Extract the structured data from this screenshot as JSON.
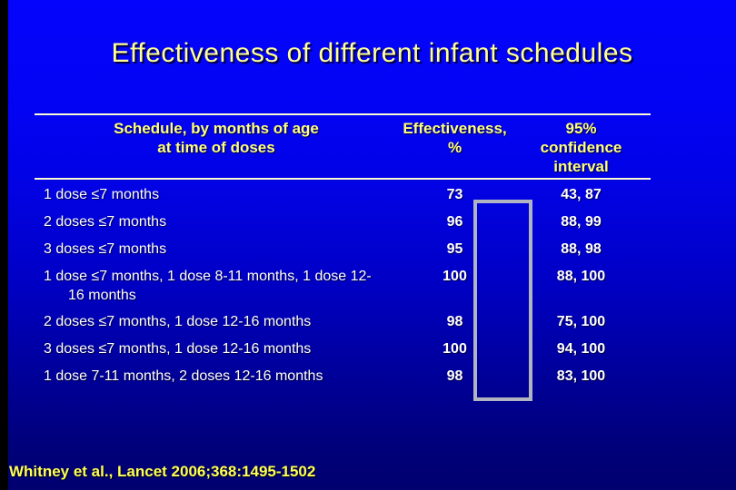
{
  "slide": {
    "title": "Effectiveness of different infant schedules"
  },
  "table": {
    "header": [
      {
        "lines": [
          "Schedule, by months of age",
          "at time of doses"
        ]
      },
      {
        "lines": [
          "Effectiveness,",
          "%"
        ]
      },
      {
        "lines": [
          "95%",
          "confidence",
          "interval"
        ]
      }
    ],
    "rows": [
      {
        "schedule": "1 dose ≤7 months",
        "effectiveness": "73",
        "ci": "43, 87"
      },
      {
        "schedule": "2 doses ≤7 months",
        "effectiveness": "96",
        "ci": "88, 99"
      },
      {
        "schedule": "3 doses ≤7 months",
        "effectiveness": "95",
        "ci": "88, 98"
      },
      {
        "schedule": "1 dose ≤7 months, 1 dose 8-11 months, 1 dose 12-16 months",
        "effectiveness": "100",
        "ci": "88, 100"
      },
      {
        "schedule": "2 doses ≤7 months, 1 dose 12-16 months",
        "effectiveness": "98",
        "ci": "75, 100"
      },
      {
        "schedule": "3 doses ≤7 months, 1 dose 12-16 months",
        "effectiveness": "100",
        "ci": "94, 100"
      },
      {
        "schedule": "1 dose 7-11 months, 2 doses 12-16 months",
        "effectiveness": "98",
        "ci": "83, 100"
      }
    ]
  },
  "citation": "Whitney et al., Lancet 2006;368:1495-1502",
  "colors": {
    "background_top": "#0404FC",
    "background_bottom": "#000070",
    "left_strip": "#000000",
    "title_text": "#FFFF96",
    "header_text": "#FFFF7D",
    "body_text": "#FFFFFF",
    "citation_text": "#FFFF55",
    "table_rule": "#FBFBD2",
    "highlight_box_border": "#B0B4C0"
  }
}
